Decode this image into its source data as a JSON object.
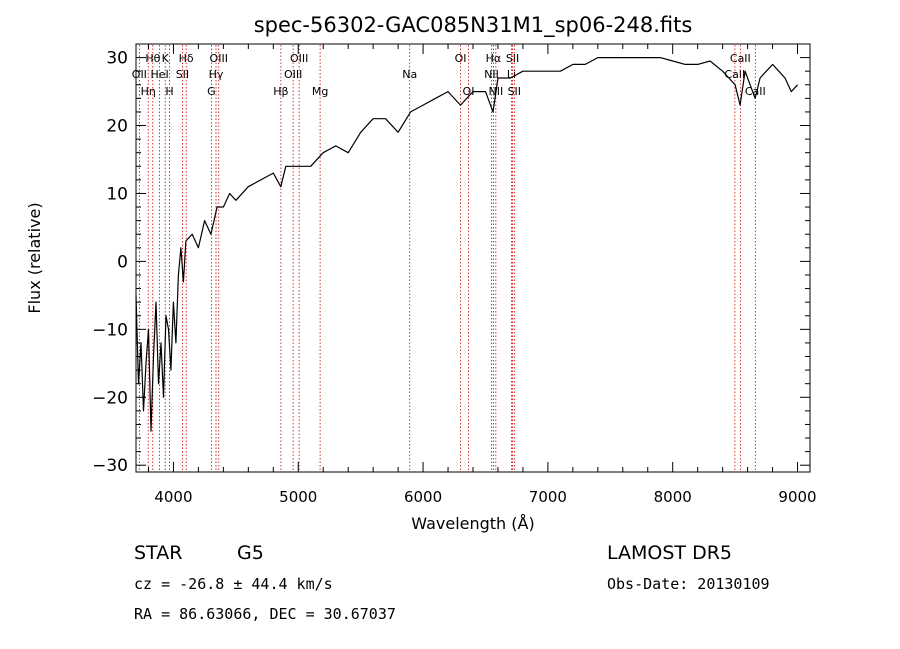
{
  "chart_data": {
    "type": "line",
    "title": "spec-56302-GAC085N31M1_sp06-248.fits",
    "xlabel": "Wavelength (Å)",
    "ylabel": "Flux (relative)",
    "xlim": [
      3700,
      9100
    ],
    "ylim": [
      -31,
      32
    ],
    "x_ticks": [
      4000,
      5000,
      6000,
      7000,
      8000,
      9000
    ],
    "y_ticks": [
      -30,
      -20,
      -10,
      0,
      10,
      20,
      30
    ],
    "x_tick_labels": [
      "4000",
      "5000",
      "6000",
      "7000",
      "8000",
      "9000"
    ],
    "y_tick_labels": [
      "−30",
      "−20",
      "−10",
      "0",
      "10",
      "20",
      "30"
    ],
    "grid": false,
    "line_color": "#000000",
    "marker_color": "#cc0000",
    "series": [
      {
        "x": [
          3700,
          3720,
          3740,
          3760,
          3780,
          3800,
          3820,
          3840,
          3860,
          3880,
          3900,
          3920,
          3940,
          3960,
          3980,
          4000,
          4020,
          4040,
          4060,
          4080,
          4100,
          4150,
          4200,
          4250,
          4300,
          4350,
          4400,
          4450,
          4500,
          4600,
          4700,
          4800,
          4860,
          4900,
          5000,
          5100,
          5200,
          5300,
          5400,
          5500,
          5600,
          5700,
          5800,
          5900,
          6000,
          6100,
          6200,
          6300,
          6400,
          6500,
          6560,
          6600,
          6700,
          6800,
          6900,
          7000,
          7100,
          7200,
          7300,
          7400,
          7500,
          7600,
          7700,
          7800,
          7900,
          8000,
          8100,
          8200,
          8300,
          8400,
          8450,
          8500,
          8540,
          8580,
          8620,
          8660,
          8700,
          8750,
          8800,
          8850,
          8900,
          8950,
          9000
        ],
        "y": [
          -5,
          -18,
          -12,
          -22,
          -15,
          -10,
          -25,
          -14,
          -6,
          -18,
          -12,
          -20,
          -8,
          -10,
          -16,
          -6,
          -12,
          -2,
          2,
          -3,
          3,
          4,
          2,
          6,
          4,
          8,
          8,
          10,
          9,
          11,
          12,
          13,
          11,
          14,
          14,
          14,
          16,
          17,
          16,
          19,
          21,
          21,
          19,
          22,
          23,
          24,
          25,
          23,
          25,
          25,
          22,
          27,
          27,
          28,
          28,
          28,
          28,
          29,
          29,
          30,
          30,
          30,
          30,
          30,
          30,
          29.5,
          29,
          29,
          29.5,
          28,
          27,
          26,
          23,
          28,
          26,
          24,
          27,
          28,
          29,
          28,
          27,
          25,
          26
        ]
      }
    ],
    "lines": [
      {
        "wl": 3727,
        "row": 2,
        "label": "OII"
      },
      {
        "wl": 3798,
        "row": 3,
        "label": "Hη"
      },
      {
        "wl": 3835,
        "row": 1,
        "label": "Hθ"
      },
      {
        "wl": 3889,
        "row": 2,
        "label": "HeI"
      },
      {
        "wl": 3934,
        "row": 1,
        "label": "K"
      },
      {
        "wl": 3969,
        "row": 3,
        "label": "H"
      },
      {
        "wl": 4072,
        "row": 2,
        "label": "SII"
      },
      {
        "wl": 4102,
        "row": 1,
        "label": "Hδ"
      },
      {
        "wl": 4304,
        "row": 3,
        "label": "G"
      },
      {
        "wl": 4341,
        "row": 2,
        "label": "Hγ"
      },
      {
        "wl": 4363,
        "row": 1,
        "label": "OIII"
      },
      {
        "wl": 4861,
        "row": 3,
        "label": "Hβ"
      },
      {
        "wl": 4959,
        "row": 2,
        "label": "OIII"
      },
      {
        "wl": 5007,
        "row": 1,
        "label": "OIII"
      },
      {
        "wl": 5175,
        "row": 3,
        "label": "Mg"
      },
      {
        "wl": 5893,
        "row": 2,
        "label": "Na"
      },
      {
        "wl": 6300,
        "row": 1,
        "label": "OI"
      },
      {
        "wl": 6364,
        "row": 3,
        "label": "OI"
      },
      {
        "wl": 6548,
        "row": 2,
        "label": "NII"
      },
      {
        "wl": 6563,
        "row": 1,
        "label": "Hα"
      },
      {
        "wl": 6583,
        "row": 3,
        "label": "NII"
      },
      {
        "wl": 6708,
        "row": 2,
        "label": "Li"
      },
      {
        "wl": 6717,
        "row": 1,
        "label": "SII"
      },
      {
        "wl": 6731,
        "row": 3,
        "label": "SII"
      },
      {
        "wl": 8498,
        "row": 2,
        "label": "CaII"
      },
      {
        "wl": 8542,
        "row": 1,
        "label": "CaII"
      },
      {
        "wl": 8662,
        "row": 3,
        "label": "CaII"
      }
    ]
  },
  "info": {
    "class": "STAR",
    "subclass": "G5",
    "survey": "LAMOST DR5",
    "redshift_line": "cz = -26.8 ± 44.4 km/s",
    "obs_date_line": "Obs-Date: 20130109",
    "coords_line": "RA =  86.63066, DEC =  30.67037"
  }
}
